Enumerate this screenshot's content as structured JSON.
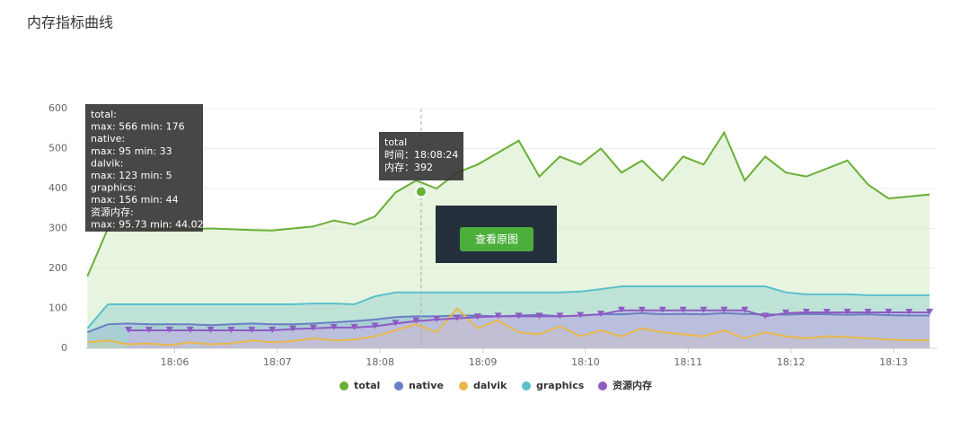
{
  "page_title": "内存指标曲线",
  "chart_data": {
    "type": "area-lines",
    "xlim": [
      1085.13,
      1093.42
    ],
    "xticks": [
      {
        "value": 1086,
        "label": "18:06"
      },
      {
        "value": 1087,
        "label": "18:07"
      },
      {
        "value": 1088,
        "label": "18:08"
      },
      {
        "value": 1089,
        "label": "18:09"
      },
      {
        "value": 1090,
        "label": "18:10"
      },
      {
        "value": 1091,
        "label": "18:11"
      },
      {
        "value": 1092,
        "label": "18:12"
      },
      {
        "value": 1093,
        "label": "18:13"
      }
    ],
    "ylim": [
      0,
      600
    ],
    "yticks": [
      0,
      100,
      200,
      300,
      400,
      500,
      600
    ],
    "grid": true,
    "legend": "bottom",
    "x": [
      1085.15,
      1085.35,
      1085.55,
      1085.75,
      1085.95,
      1086.15,
      1086.35,
      1086.55,
      1086.75,
      1086.95,
      1087.15,
      1087.35,
      1087.55,
      1087.75,
      1087.95,
      1088.15,
      1088.35,
      1088.55,
      1088.75,
      1088.95,
      1089.15,
      1089.35,
      1089.55,
      1089.75,
      1089.95,
      1090.15,
      1090.35,
      1090.55,
      1090.75,
      1090.95,
      1091.15,
      1091.35,
      1091.55,
      1091.75,
      1091.95,
      1092.15,
      1092.35,
      1092.55,
      1092.75,
      1092.95,
      1093.15,
      1093.35
    ],
    "series": [
      {
        "name": "total",
        "color": "#6aaf35",
        "fill": "#d3ebc4",
        "values": [
          180,
          300,
          310,
          295,
          300,
          298,
          300,
          298,
          296,
          295,
          300,
          305,
          320,
          310,
          330,
          390,
          420,
          400,
          440,
          460,
          490,
          520,
          430,
          480,
          460,
          500,
          440,
          470,
          420,
          480,
          460,
          540,
          420,
          480,
          440,
          430,
          450,
          470,
          410,
          375,
          380,
          385
        ]
      },
      {
        "name": "native",
        "color": "#6b7fc4",
        "fill": "#8fa0d4",
        "values": [
          40,
          60,
          62,
          60,
          60,
          60,
          58,
          60,
          62,
          60,
          60,
          62,
          65,
          68,
          72,
          78,
          80,
          80,
          82,
          82,
          80,
          82,
          84,
          80,
          82,
          85,
          85,
          88,
          85,
          86,
          85,
          88,
          86,
          85,
          84,
          86,
          85,
          84,
          85,
          83,
          82,
          82
        ]
      },
      {
        "name": "dalvik",
        "color": "#e8b84a",
        "fill": "#e8c98a",
        "values": [
          15,
          20,
          10,
          12,
          8,
          15,
          10,
          12,
          20,
          15,
          18,
          25,
          20,
          22,
          30,
          45,
          60,
          40,
          100,
          50,
          70,
          40,
          35,
          55,
          30,
          45,
          30,
          50,
          40,
          35,
          30,
          45,
          25,
          40,
          30,
          25,
          30,
          28,
          25,
          22,
          20,
          20
        ]
      },
      {
        "name": "graphics",
        "color": "#5bc0cc",
        "fill": "#9fd6d0",
        "values": [
          50,
          110,
          110,
          110,
          110,
          110,
          110,
          110,
          110,
          110,
          110,
          112,
          112,
          110,
          130,
          140,
          140,
          140,
          140,
          140,
          140,
          140,
          140,
          140,
          142,
          148,
          155,
          155,
          155,
          155,
          155,
          155,
          155,
          155,
          140,
          135,
          135,
          135,
          133,
          133,
          133,
          133
        ]
      },
      {
        "name": "资源内存",
        "color": "#8e5bc3",
        "fill": "#c9b3e3",
        "values": [
          null,
          null,
          45,
          45,
          45,
          45,
          45,
          45,
          45,
          45,
          48,
          50,
          52,
          52,
          55,
          62,
          68,
          72,
          75,
          78,
          80,
          80,
          80,
          80,
          82,
          85,
          95,
          95,
          95,
          95,
          95,
          95,
          95,
          80,
          88,
          90,
          90,
          90,
          90,
          90,
          90,
          90
        ]
      }
    ],
    "summary_tooltip": [
      "total:",
      "max: 566 min: 176",
      "native:",
      "max: 95 min: 33",
      "dalvik:",
      "max: 123 min: 5",
      "graphics:",
      "max: 156 min: 44",
      "资源内存:",
      "max: 95.73 min: 44.02"
    ],
    "hover": {
      "x": 1088.4,
      "y": 392,
      "lines": [
        "total",
        "时间：18:08:24",
        "内存：392"
      ],
      "button": "查看原图"
    }
  }
}
